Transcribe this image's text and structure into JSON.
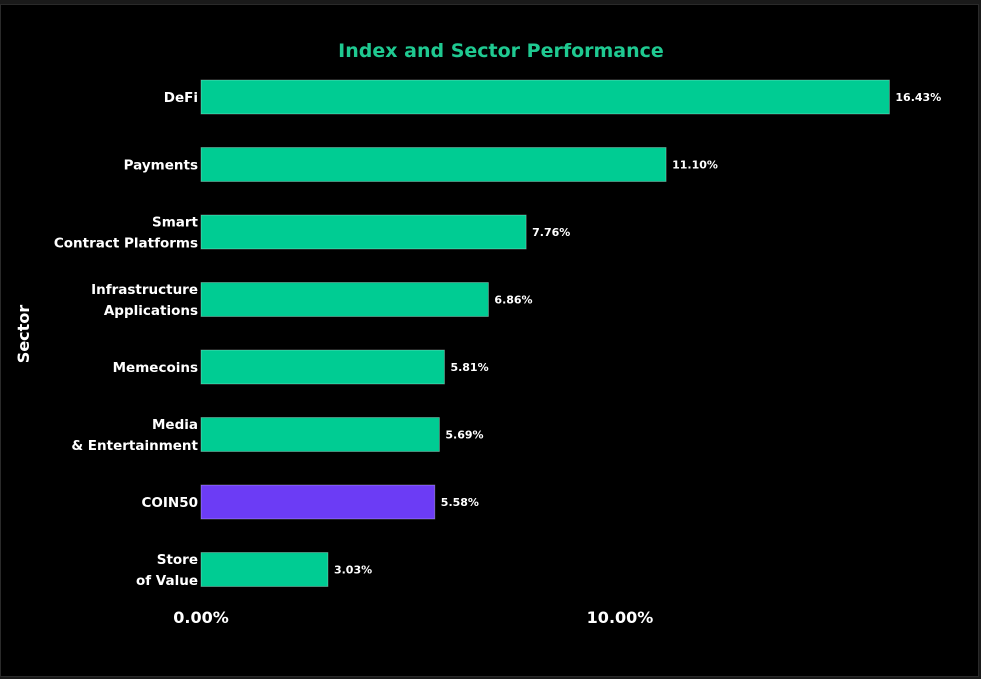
{
  "chart_data": {
    "type": "bar",
    "orientation": "horizontal",
    "title": "Index and Sector Performance",
    "ylabel": "Sector",
    "xlabel": "",
    "xlim": [
      0,
      16.43
    ],
    "xticks": [
      0,
      10
    ],
    "xtick_labels": [
      "0.00%",
      "10.00%"
    ],
    "grid": false,
    "legend": "none",
    "categories": [
      [
        "DeFi"
      ],
      [
        "Payments"
      ],
      [
        "Smart",
        "Contract Platforms"
      ],
      [
        "Infrastructure",
        "Applications"
      ],
      [
        "Memecoins"
      ],
      [
        "Media",
        "& Entertainment"
      ],
      [
        "COIN50"
      ],
      [
        "Store",
        "of Value"
      ]
    ],
    "values": [
      16.43,
      11.1,
      7.76,
      6.86,
      5.81,
      5.69,
      5.58,
      3.03
    ],
    "value_labels": [
      "16.43%",
      "11.10%",
      "7.76%",
      "6.86%",
      "5.81%",
      "5.69%",
      "5.58%",
      "3.03%"
    ],
    "colors": {
      "title": "#1fc991",
      "sector_bar": "#00cc93",
      "index_bar": "#6c3cf5",
      "background": "#000000"
    },
    "highlight_index": 6
  }
}
